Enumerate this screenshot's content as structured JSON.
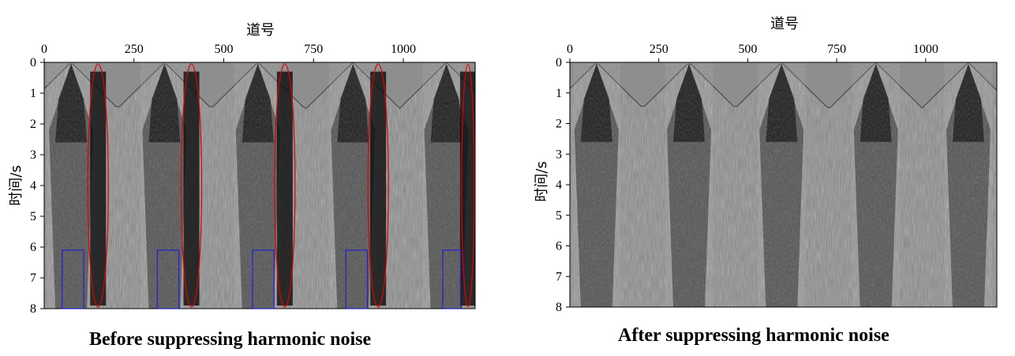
{
  "panels": [
    {
      "caption": "Before suppressing harmonic noise",
      "x_axis_title": "道号",
      "y_axis_title": "时间/s",
      "x_ticks": [
        "0",
        "250",
        "500",
        "750",
        "1000"
      ],
      "y_ticks": [
        "0",
        "1",
        "2",
        "3",
        "4",
        "5",
        "6",
        "7",
        "8"
      ],
      "x_range": [
        0,
        1200
      ],
      "y_range": [
        0,
        8
      ],
      "shots_at_trace": [
        75,
        335,
        595,
        860,
        1120
      ],
      "highlight_ellipses": [
        150,
        410,
        670,
        930,
        1180
      ],
      "highlight_boxes": [
        [
          50,
          110
        ],
        [
          315,
          375
        ],
        [
          580,
          640
        ],
        [
          840,
          900
        ],
        [
          1110,
          1160
        ]
      ],
      "box_time_range": [
        6.1,
        8
      ],
      "colors": {
        "ellipse": "#e00000",
        "box": "#2020d0"
      }
    },
    {
      "caption": "After suppressing harmonic noise",
      "x_axis_title": "道号",
      "y_axis_title": "时间/s",
      "x_ticks": [
        "0",
        "250",
        "500",
        "750",
        "1000"
      ],
      "y_ticks": [
        "0",
        "1",
        "2",
        "3",
        "4",
        "5",
        "6",
        "7",
        "8"
      ],
      "x_range": [
        0,
        1200
      ],
      "y_range": [
        0,
        8
      ],
      "shots_at_trace": [
        75,
        335,
        595,
        860,
        1120
      ]
    }
  ]
}
